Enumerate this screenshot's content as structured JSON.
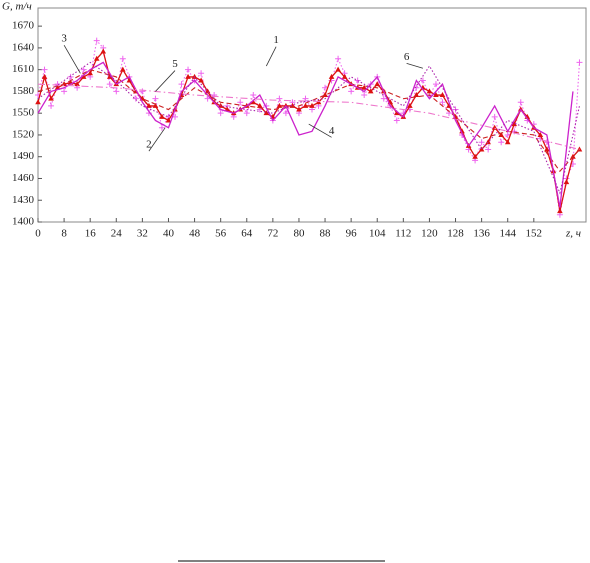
{
  "chart_data": {
    "type": "line",
    "y_label": "G, т/ч",
    "x_label": "z, ч",
    "xlim": [
      0,
      168
    ],
    "ylim": [
      1400,
      1695
    ],
    "xticks": [
      0,
      8,
      16,
      24,
      32,
      40,
      48,
      56,
      64,
      72,
      80,
      88,
      96,
      104,
      112,
      120,
      128,
      136,
      144,
      152
    ],
    "yticks": [
      1400,
      1430,
      1460,
      1490,
      1520,
      1550,
      1580,
      1610,
      1640,
      1670
    ],
    "grid": false,
    "series": [
      {
        "name": "1",
        "color": "#ee66ee",
        "style": "dotted",
        "marker": "plus",
        "x": [
          0,
          2,
          4,
          6,
          8,
          10,
          12,
          14,
          16,
          18,
          20,
          22,
          24,
          26,
          28,
          30,
          32,
          34,
          36,
          38,
          40,
          42,
          44,
          46,
          48,
          50,
          52,
          54,
          56,
          58,
          60,
          62,
          64,
          66,
          68,
          70,
          72,
          74,
          76,
          78,
          80,
          82,
          84,
          86,
          88,
          90,
          92,
          94,
          96,
          98,
          100,
          102,
          104,
          106,
          108,
          110,
          112,
          114,
          116,
          118,
          120,
          122,
          124,
          126,
          128,
          130,
          132,
          134,
          136,
          138,
          140,
          142,
          144,
          146,
          148,
          150,
          152,
          154,
          156,
          158,
          160,
          162,
          164,
          166
        ],
        "values": [
          1575,
          1610,
          1560,
          1590,
          1580,
          1600,
          1585,
          1610,
          1600,
          1650,
          1640,
          1590,
          1580,
          1625,
          1600,
          1570,
          1580,
          1550,
          1570,
          1530,
          1545,
          1545,
          1590,
          1610,
          1595,
          1605,
          1570,
          1575,
          1550,
          1560,
          1545,
          1565,
          1550,
          1575,
          1555,
          1560,
          1540,
          1570,
          1550,
          1565,
          1550,
          1570,
          1555,
          1560,
          1585,
          1595,
          1625,
          1605,
          1580,
          1595,
          1575,
          1590,
          1600,
          1570,
          1560,
          1540,
          1550,
          1555,
          1585,
          1595,
          1575,
          1590,
          1565,
          1550,
          1555,
          1520,
          1500,
          1485,
          1510,
          1500,
          1545,
          1510,
          1520,
          1525,
          1565,
          1540,
          1535,
          1515,
          1510,
          1470,
          1410,
          1460,
          1480,
          1620
        ]
      },
      {
        "name": "2",
        "color": "#dd1111",
        "style": "solid",
        "marker": "triangle",
        "x": [
          0,
          2,
          4,
          6,
          8,
          10,
          12,
          14,
          16,
          18,
          20,
          22,
          24,
          26,
          28,
          30,
          32,
          34,
          36,
          38,
          40,
          42,
          44,
          46,
          48,
          50,
          52,
          54,
          56,
          58,
          60,
          62,
          64,
          66,
          68,
          70,
          72,
          74,
          76,
          78,
          80,
          82,
          84,
          86,
          88,
          90,
          92,
          94,
          96,
          98,
          100,
          102,
          104,
          106,
          108,
          110,
          112,
          114,
          116,
          118,
          120,
          122,
          124,
          126,
          128,
          130,
          132,
          134,
          136,
          138,
          140,
          142,
          144,
          146,
          148,
          150,
          152,
          154,
          156,
          158,
          160,
          162,
          164,
          166
        ],
        "values": [
          1565,
          1600,
          1570,
          1585,
          1590,
          1592,
          1590,
          1600,
          1605,
          1625,
          1635,
          1600,
          1590,
          1610,
          1595,
          1580,
          1570,
          1560,
          1560,
          1545,
          1540,
          1555,
          1575,
          1600,
          1600,
          1595,
          1580,
          1565,
          1560,
          1555,
          1550,
          1555,
          1560,
          1565,
          1560,
          1550,
          1545,
          1560,
          1560,
          1560,
          1555,
          1560,
          1560,
          1565,
          1575,
          1600,
          1610,
          1600,
          1590,
          1585,
          1585,
          1580,
          1590,
          1580,
          1565,
          1550,
          1545,
          1560,
          1575,
          1585,
          1580,
          1575,
          1575,
          1560,
          1545,
          1525,
          1505,
          1490,
          1500,
          1510,
          1530,
          1520,
          1510,
          1535,
          1555,
          1545,
          1530,
          1520,
          1500,
          1470,
          1415,
          1455,
          1490,
          1500
        ]
      },
      {
        "name": "3",
        "color": "#cc2222",
        "style": "dashed",
        "marker": "none",
        "x": [
          0,
          8,
          16,
          24,
          32,
          40,
          48,
          56,
          64,
          72,
          80,
          88,
          96,
          104,
          112,
          120,
          128,
          136,
          144,
          152,
          160,
          166
        ],
        "values": [
          1580,
          1590,
          1610,
          1600,
          1570,
          1555,
          1585,
          1565,
          1560,
          1555,
          1560,
          1575,
          1590,
          1585,
          1570,
          1575,
          1545,
          1515,
          1525,
          1520,
          1470,
          1500
        ]
      },
      {
        "name": "4",
        "color": "#cc22cc",
        "style": "solid",
        "marker": "none",
        "x": [
          0,
          4,
          8,
          12,
          16,
          20,
          24,
          28,
          32,
          36,
          40,
          44,
          48,
          52,
          56,
          60,
          64,
          68,
          72,
          76,
          80,
          84,
          88,
          92,
          96,
          100,
          104,
          108,
          112,
          116,
          120,
          124,
          128,
          132,
          136,
          140,
          144,
          148,
          152,
          156,
          160,
          164
        ],
        "values": [
          1550,
          1580,
          1585,
          1595,
          1610,
          1620,
          1590,
          1600,
          1565,
          1540,
          1530,
          1580,
          1595,
          1575,
          1555,
          1550,
          1560,
          1575,
          1540,
          1560,
          1520,
          1525,
          1560,
          1600,
          1590,
          1580,
          1600,
          1560,
          1545,
          1595,
          1570,
          1590,
          1540,
          1505,
          1530,
          1560,
          1525,
          1555,
          1530,
          1520,
          1420,
          1580
        ]
      },
      {
        "name": "5",
        "color": "#ee77cc",
        "style": "dashdot",
        "marker": "none",
        "x": [
          0,
          24,
          48,
          72,
          96,
          120,
          144,
          166
        ],
        "values": [
          1590,
          1585,
          1575,
          1568,
          1565,
          1550,
          1525,
          1500
        ]
      },
      {
        "name": "6",
        "color": "#aa22aa",
        "style": "dotted",
        "marker": "none",
        "x": [
          0,
          8,
          16,
          24,
          32,
          40,
          48,
          56,
          64,
          72,
          80,
          88,
          96,
          104,
          112,
          120,
          128,
          136,
          144,
          152,
          160,
          166
        ],
        "values": [
          1570,
          1595,
          1620,
          1595,
          1560,
          1545,
          1600,
          1560,
          1555,
          1550,
          1565,
          1570,
          1600,
          1580,
          1560,
          1615,
          1555,
          1500,
          1540,
          1525,
          1440,
          1560
        ]
      }
    ],
    "annotations": [
      {
        "text": "1",
        "x": 73,
        "y": 1650,
        "point": [
          70,
          1615
        ]
      },
      {
        "text": "2",
        "x": 34,
        "y": 1506,
        "point": [
          39,
          1530
        ]
      },
      {
        "text": "3",
        "x": 8,
        "y": 1652,
        "point": [
          13,
          1605
        ]
      },
      {
        "text": "4",
        "x": 90,
        "y": 1525,
        "point": [
          83,
          1535
        ]
      },
      {
        "text": "5",
        "x": 42,
        "y": 1617,
        "point": [
          36,
          1580
        ]
      },
      {
        "text": "6",
        "x": 113,
        "y": 1627,
        "point": [
          118,
          1612
        ]
      }
    ]
  }
}
